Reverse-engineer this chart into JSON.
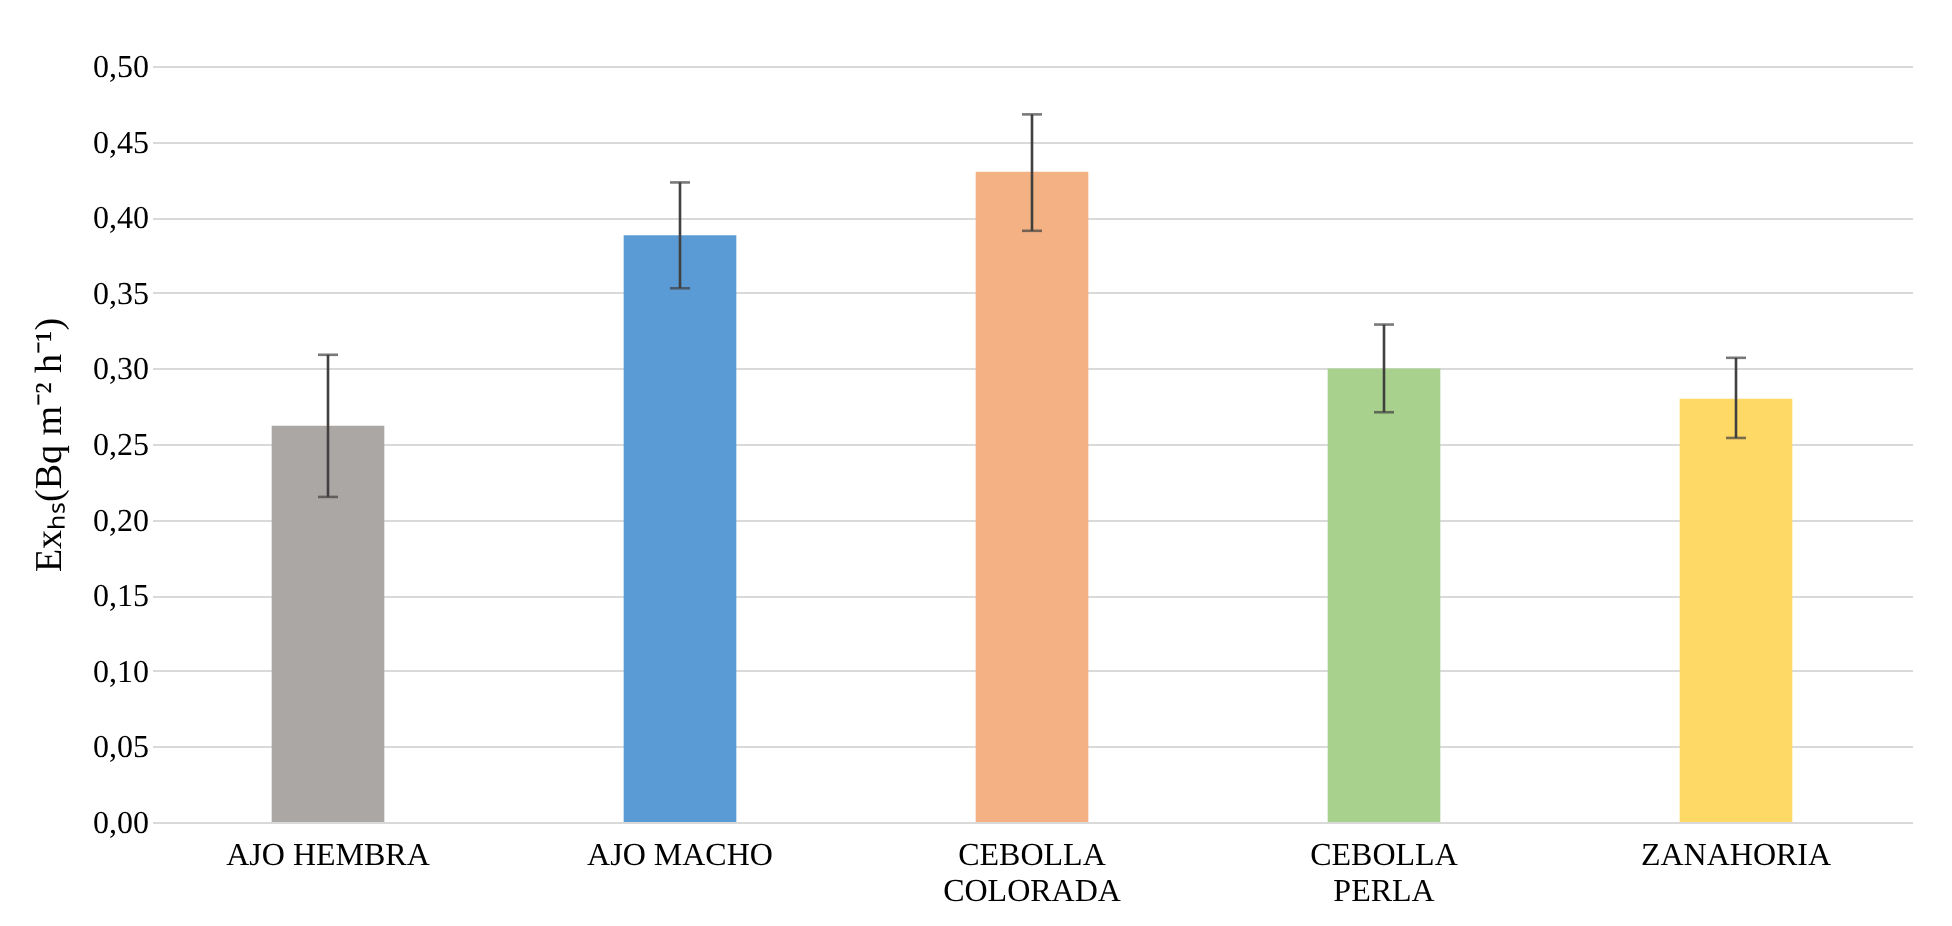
{
  "chart_data": {
    "type": "bar",
    "ylabel": "Exₕₛ(Bq m⁻² h⁻¹)",
    "categories": [
      "AJO HEMBRA",
      "AJO MACHO",
      "CEBOLLA COLORADA",
      "CEBOLLA PERLA",
      "ZANAHORIA"
    ],
    "values": [
      0.262,
      0.388,
      0.43,
      0.3,
      0.28
    ],
    "colors": [
      "#aba7a5",
      "#5b9bd5",
      "#f4b183",
      "#a9d18e",
      "#ffd966"
    ],
    "errors": [
      [
        0.215,
        0.309
      ],
      [
        0.353,
        0.423
      ],
      [
        0.391,
        0.468
      ],
      [
        0.271,
        0.329
      ],
      [
        0.254,
        0.307
      ]
    ],
    "ylim": [
      0,
      0.5
    ],
    "yticks": [
      {
        "value": 0,
        "label": "0,00"
      },
      {
        "value": 0.05,
        "label": "0,05"
      },
      {
        "value": 0.1,
        "label": "0,10"
      },
      {
        "value": 0.15,
        "label": "0,15"
      },
      {
        "value": 0.2,
        "label": "0,20"
      },
      {
        "value": 0.25,
        "label": "0,25"
      },
      {
        "value": 0.3,
        "label": "0,30"
      },
      {
        "value": 0.35,
        "label": "0,35"
      },
      {
        "value": 0.4,
        "label": "0,40"
      },
      {
        "value": 0.45,
        "label": "0,45"
      },
      {
        "value": 0.5,
        "label": "0,50"
      }
    ],
    "grid": "y"
  }
}
